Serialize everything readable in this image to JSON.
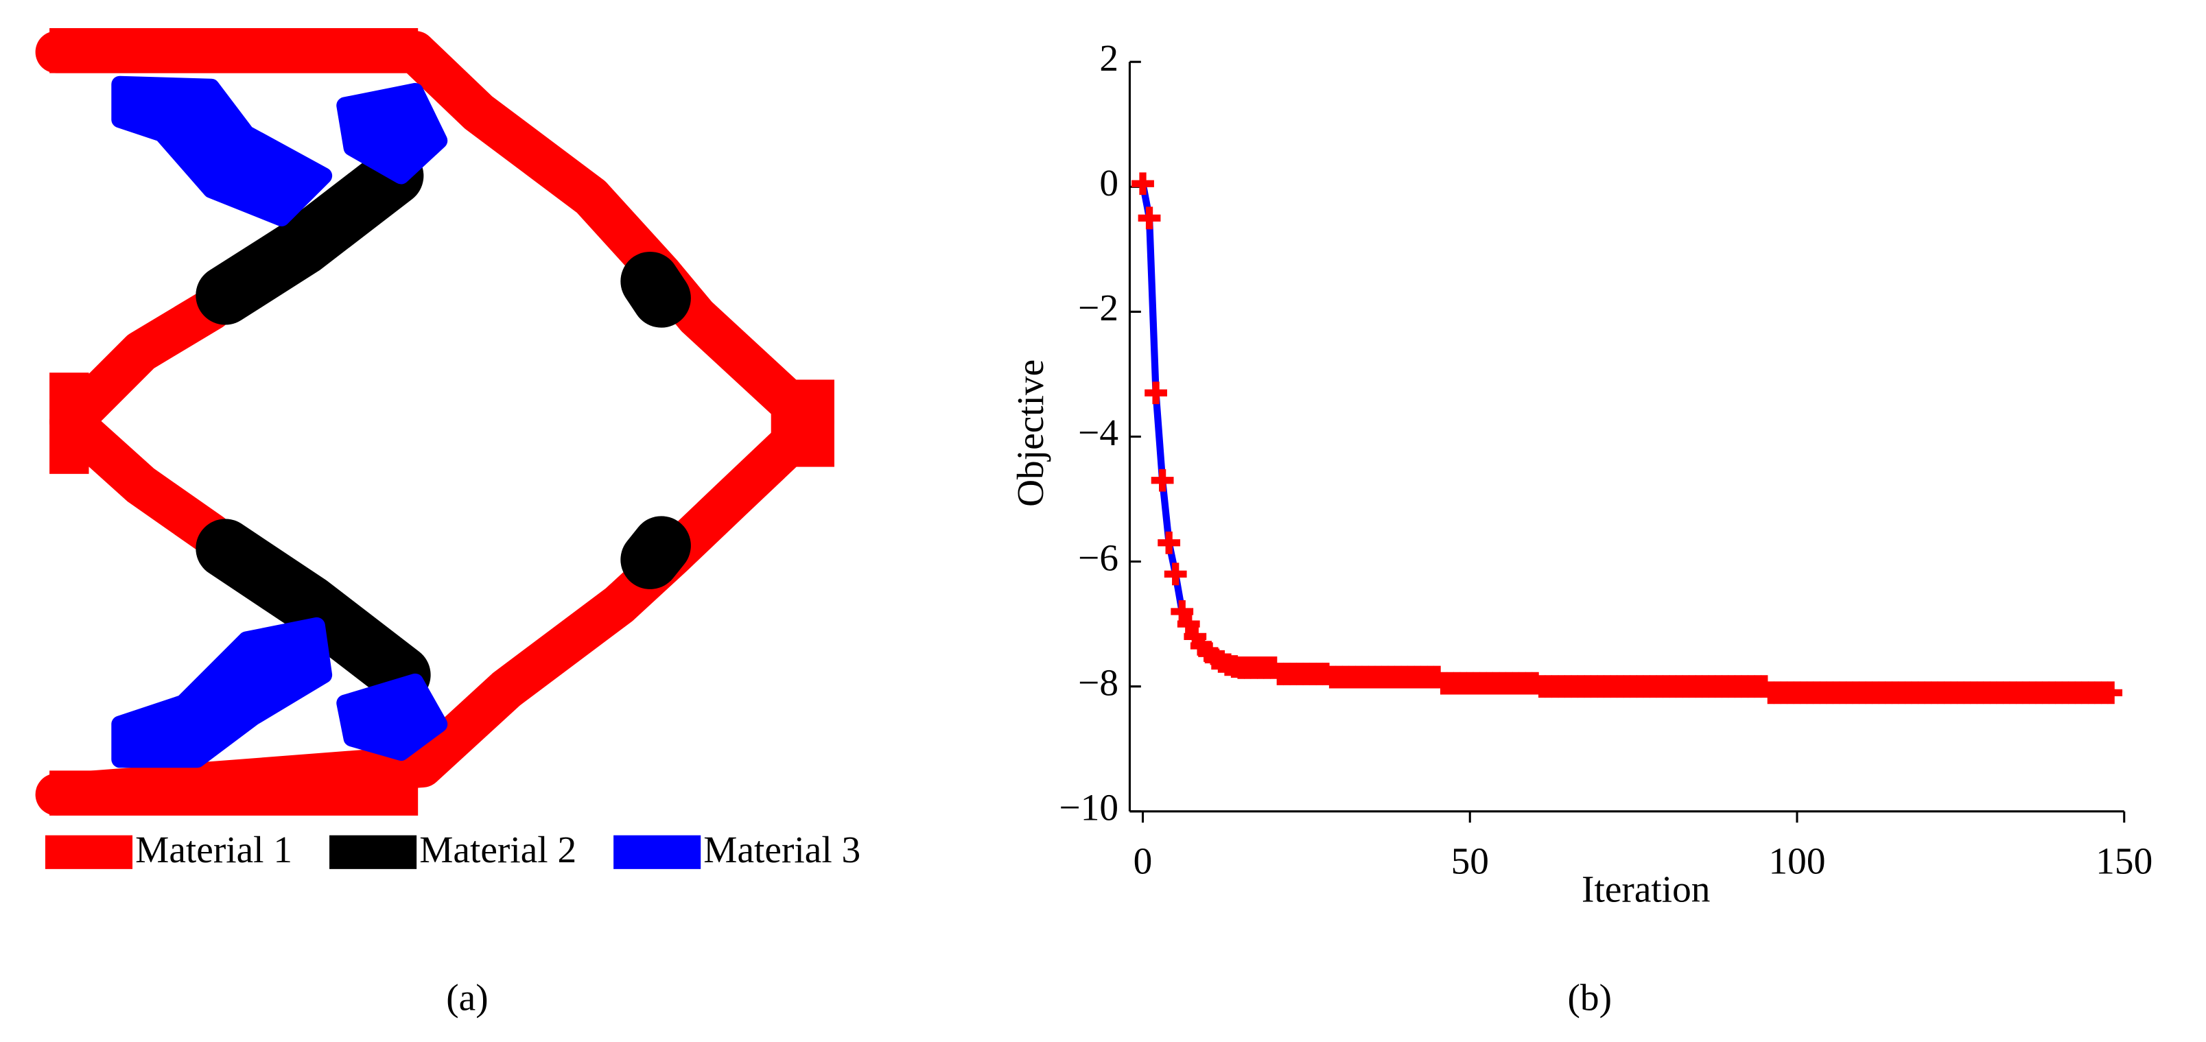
{
  "figure_a": {
    "label": "(a)",
    "legend": [
      {
        "name": "Material 1",
        "color": "#ff0000"
      },
      {
        "name": "Material 2",
        "color": "#000000"
      },
      {
        "name": "Material 3",
        "color": "#0000ff"
      }
    ]
  },
  "chart_data": {
    "type": "line",
    "label": "(b)",
    "xlabel": "Iteration",
    "ylabel": "Objective",
    "xlim": [
      -2,
      150
    ],
    "xticks": [
      0,
      50,
      100,
      150
    ],
    "ylim": [
      -10,
      2
    ],
    "yticks": [
      {
        "value": -10,
        "label": "−10"
      },
      {
        "value": -8,
        "label": "−8"
      },
      {
        "value": -6,
        "label": "−6"
      },
      {
        "value": -4,
        "label": "−4"
      },
      {
        "value": -2,
        "label": "−2"
      },
      0,
      2
    ],
    "line_color": "#0000ff",
    "marker_color": "#ff0000",
    "x": [
      0,
      1,
      2,
      3,
      4,
      5,
      6,
      7,
      8,
      9,
      10,
      11,
      12,
      13,
      14,
      15,
      16,
      17,
      18,
      19,
      20,
      21,
      22,
      23,
      24,
      25,
      26,
      27,
      28,
      29,
      30,
      31,
      32,
      33,
      34,
      35,
      36,
      37,
      38,
      39,
      40,
      41,
      42,
      43,
      44,
      45,
      46,
      47,
      48,
      49,
      50,
      51,
      52,
      53,
      54,
      55,
      56,
      57,
      58,
      59,
      60,
      61,
      62,
      63,
      64,
      65,
      66,
      67,
      68,
      69,
      70,
      71,
      72,
      73,
      74,
      75,
      76,
      77,
      78,
      79,
      80,
      81,
      82,
      83,
      84,
      85,
      86,
      87,
      88,
      89,
      90,
      91,
      92,
      93,
      94,
      95,
      96,
      97,
      98,
      99,
      100,
      101,
      102,
      103,
      104,
      105,
      106,
      107,
      108,
      109,
      110,
      111,
      112,
      113,
      114,
      115,
      116,
      117,
      118,
      119,
      120,
      121,
      122,
      123,
      124,
      125,
      126,
      127,
      128,
      129,
      130,
      131,
      132,
      133,
      134,
      135,
      136,
      137,
      138,
      139,
      140,
      141,
      142,
      143,
      144,
      145,
      146,
      147,
      148
    ],
    "values": [
      0.05,
      -0.5,
      -3.3,
      -4.7,
      -5.7,
      -6.2,
      -6.8,
      -7.0,
      -7.2,
      -7.35,
      -7.45,
      -7.55,
      -7.6,
      -7.65,
      -7.68,
      -7.7,
      -7.7,
      -7.7,
      -7.7,
      -7.7,
      -7.7,
      -7.8,
      -7.8,
      -7.8,
      -7.8,
      -7.8,
      -7.8,
      -7.8,
      -7.8,
      -7.85,
      -7.85,
      -7.85,
      -7.85,
      -7.85,
      -7.85,
      -7.85,
      -7.85,
      -7.85,
      -7.85,
      -7.85,
      -7.85,
      -7.85,
      -7.85,
      -7.85,
      -7.85,
      -7.85,
      -7.95,
      -7.95,
      -7.95,
      -7.95,
      -7.95,
      -7.95,
      -7.95,
      -7.95,
      -7.95,
      -7.95,
      -7.95,
      -7.95,
      -7.95,
      -7.95,
      -7.95,
      -8.0,
      -8.0,
      -8.0,
      -8.0,
      -8.0,
      -8.0,
      -8.0,
      -8.0,
      -8.0,
      -8.0,
      -8.0,
      -8.0,
      -8.0,
      -8.0,
      -8.0,
      -8.0,
      -8.0,
      -8.0,
      -8.0,
      -8.0,
      -8.0,
      -8.0,
      -8.0,
      -8.0,
      -8.0,
      -8.0,
      -8.0,
      -8.0,
      -8.0,
      -8.0,
      -8.0,
      -8.0,
      -8.0,
      -8.0,
      -8.0,
      -8.1,
      -8.1,
      -8.1,
      -8.1,
      -8.1,
      -8.1,
      -8.1,
      -8.1,
      -8.1,
      -8.1,
      -8.1,
      -8.1,
      -8.1,
      -8.1,
      -8.1,
      -8.1,
      -8.1,
      -8.1,
      -8.1,
      -8.1,
      -8.1,
      -8.1,
      -8.1,
      -8.1,
      -8.1,
      -8.1,
      -8.1,
      -8.1,
      -8.1,
      -8.1,
      -8.1,
      -8.1,
      -8.1,
      -8.1,
      -8.1,
      -8.1,
      -8.1,
      -8.1,
      -8.1,
      -8.1,
      -8.1,
      -8.1,
      -8.1,
      -8.1,
      -8.1,
      -8.1,
      -8.1,
      -8.1,
      -8.1,
      -8.1,
      -8.1,
      -8.1,
      -8.1
    ]
  }
}
